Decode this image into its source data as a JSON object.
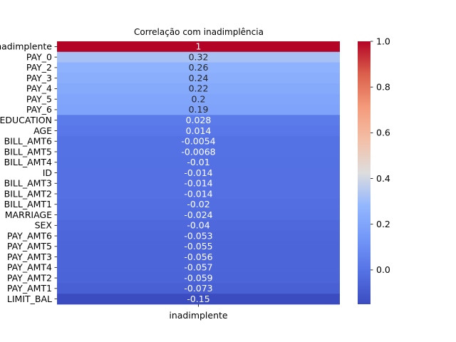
{
  "chart_data": {
    "type": "heatmap",
    "title": "Correlação com inadimplência",
    "column_label": "inadimplente",
    "rows": [
      {
        "label": "inadimplente",
        "value": 1,
        "text": "1"
      },
      {
        "label": "PAY_0",
        "value": 0.32,
        "text": "0.32"
      },
      {
        "label": "PAY_2",
        "value": 0.26,
        "text": "0.26"
      },
      {
        "label": "PAY_3",
        "value": 0.24,
        "text": "0.24"
      },
      {
        "label": "PAY_4",
        "value": 0.22,
        "text": "0.22"
      },
      {
        "label": "PAY_5",
        "value": 0.2,
        "text": "0.2"
      },
      {
        "label": "PAY_6",
        "value": 0.19,
        "text": "0.19"
      },
      {
        "label": "EDUCATION",
        "value": 0.028,
        "text": "0.028"
      },
      {
        "label": "AGE",
        "value": 0.014,
        "text": "0.014"
      },
      {
        "label": "BILL_AMT6",
        "value": -0.0054,
        "text": "-0.0054"
      },
      {
        "label": "BILL_AMT5",
        "value": -0.0068,
        "text": "-0.0068"
      },
      {
        "label": "BILL_AMT4",
        "value": -0.01,
        "text": "-0.01"
      },
      {
        "label": "ID",
        "value": -0.014,
        "text": "-0.014"
      },
      {
        "label": "BILL_AMT3",
        "value": -0.014,
        "text": "-0.014"
      },
      {
        "label": "BILL_AMT2",
        "value": -0.014,
        "text": "-0.014"
      },
      {
        "label": "BILL_AMT1",
        "value": -0.02,
        "text": "-0.02"
      },
      {
        "label": "MARRIAGE",
        "value": -0.024,
        "text": "-0.024"
      },
      {
        "label": "SEX",
        "value": -0.04,
        "text": "-0.04"
      },
      {
        "label": "PAY_AMT6",
        "value": -0.053,
        "text": "-0.053"
      },
      {
        "label": "PAY_AMT5",
        "value": -0.055,
        "text": "-0.055"
      },
      {
        "label": "PAY_AMT3",
        "value": -0.056,
        "text": "-0.056"
      },
      {
        "label": "PAY_AMT4",
        "value": -0.057,
        "text": "-0.057"
      },
      {
        "label": "PAY_AMT2",
        "value": -0.059,
        "text": "-0.059"
      },
      {
        "label": "PAY_AMT1",
        "value": -0.073,
        "text": "-0.073"
      },
      {
        "label": "LIMIT_BAL",
        "value": -0.15,
        "text": "-0.15"
      }
    ],
    "colormap": "coolwarm",
    "color_range": [
      -0.15,
      1
    ],
    "colorbar_ticks": [
      {
        "value": 0.0,
        "label": "0.0"
      },
      {
        "value": 0.2,
        "label": "0.2"
      },
      {
        "value": 0.4,
        "label": "0.4"
      },
      {
        "value": 0.6,
        "label": "0.6"
      },
      {
        "value": 0.8,
        "label": "0.8"
      },
      {
        "value": 1.0,
        "label": "1.0"
      }
    ]
  }
}
